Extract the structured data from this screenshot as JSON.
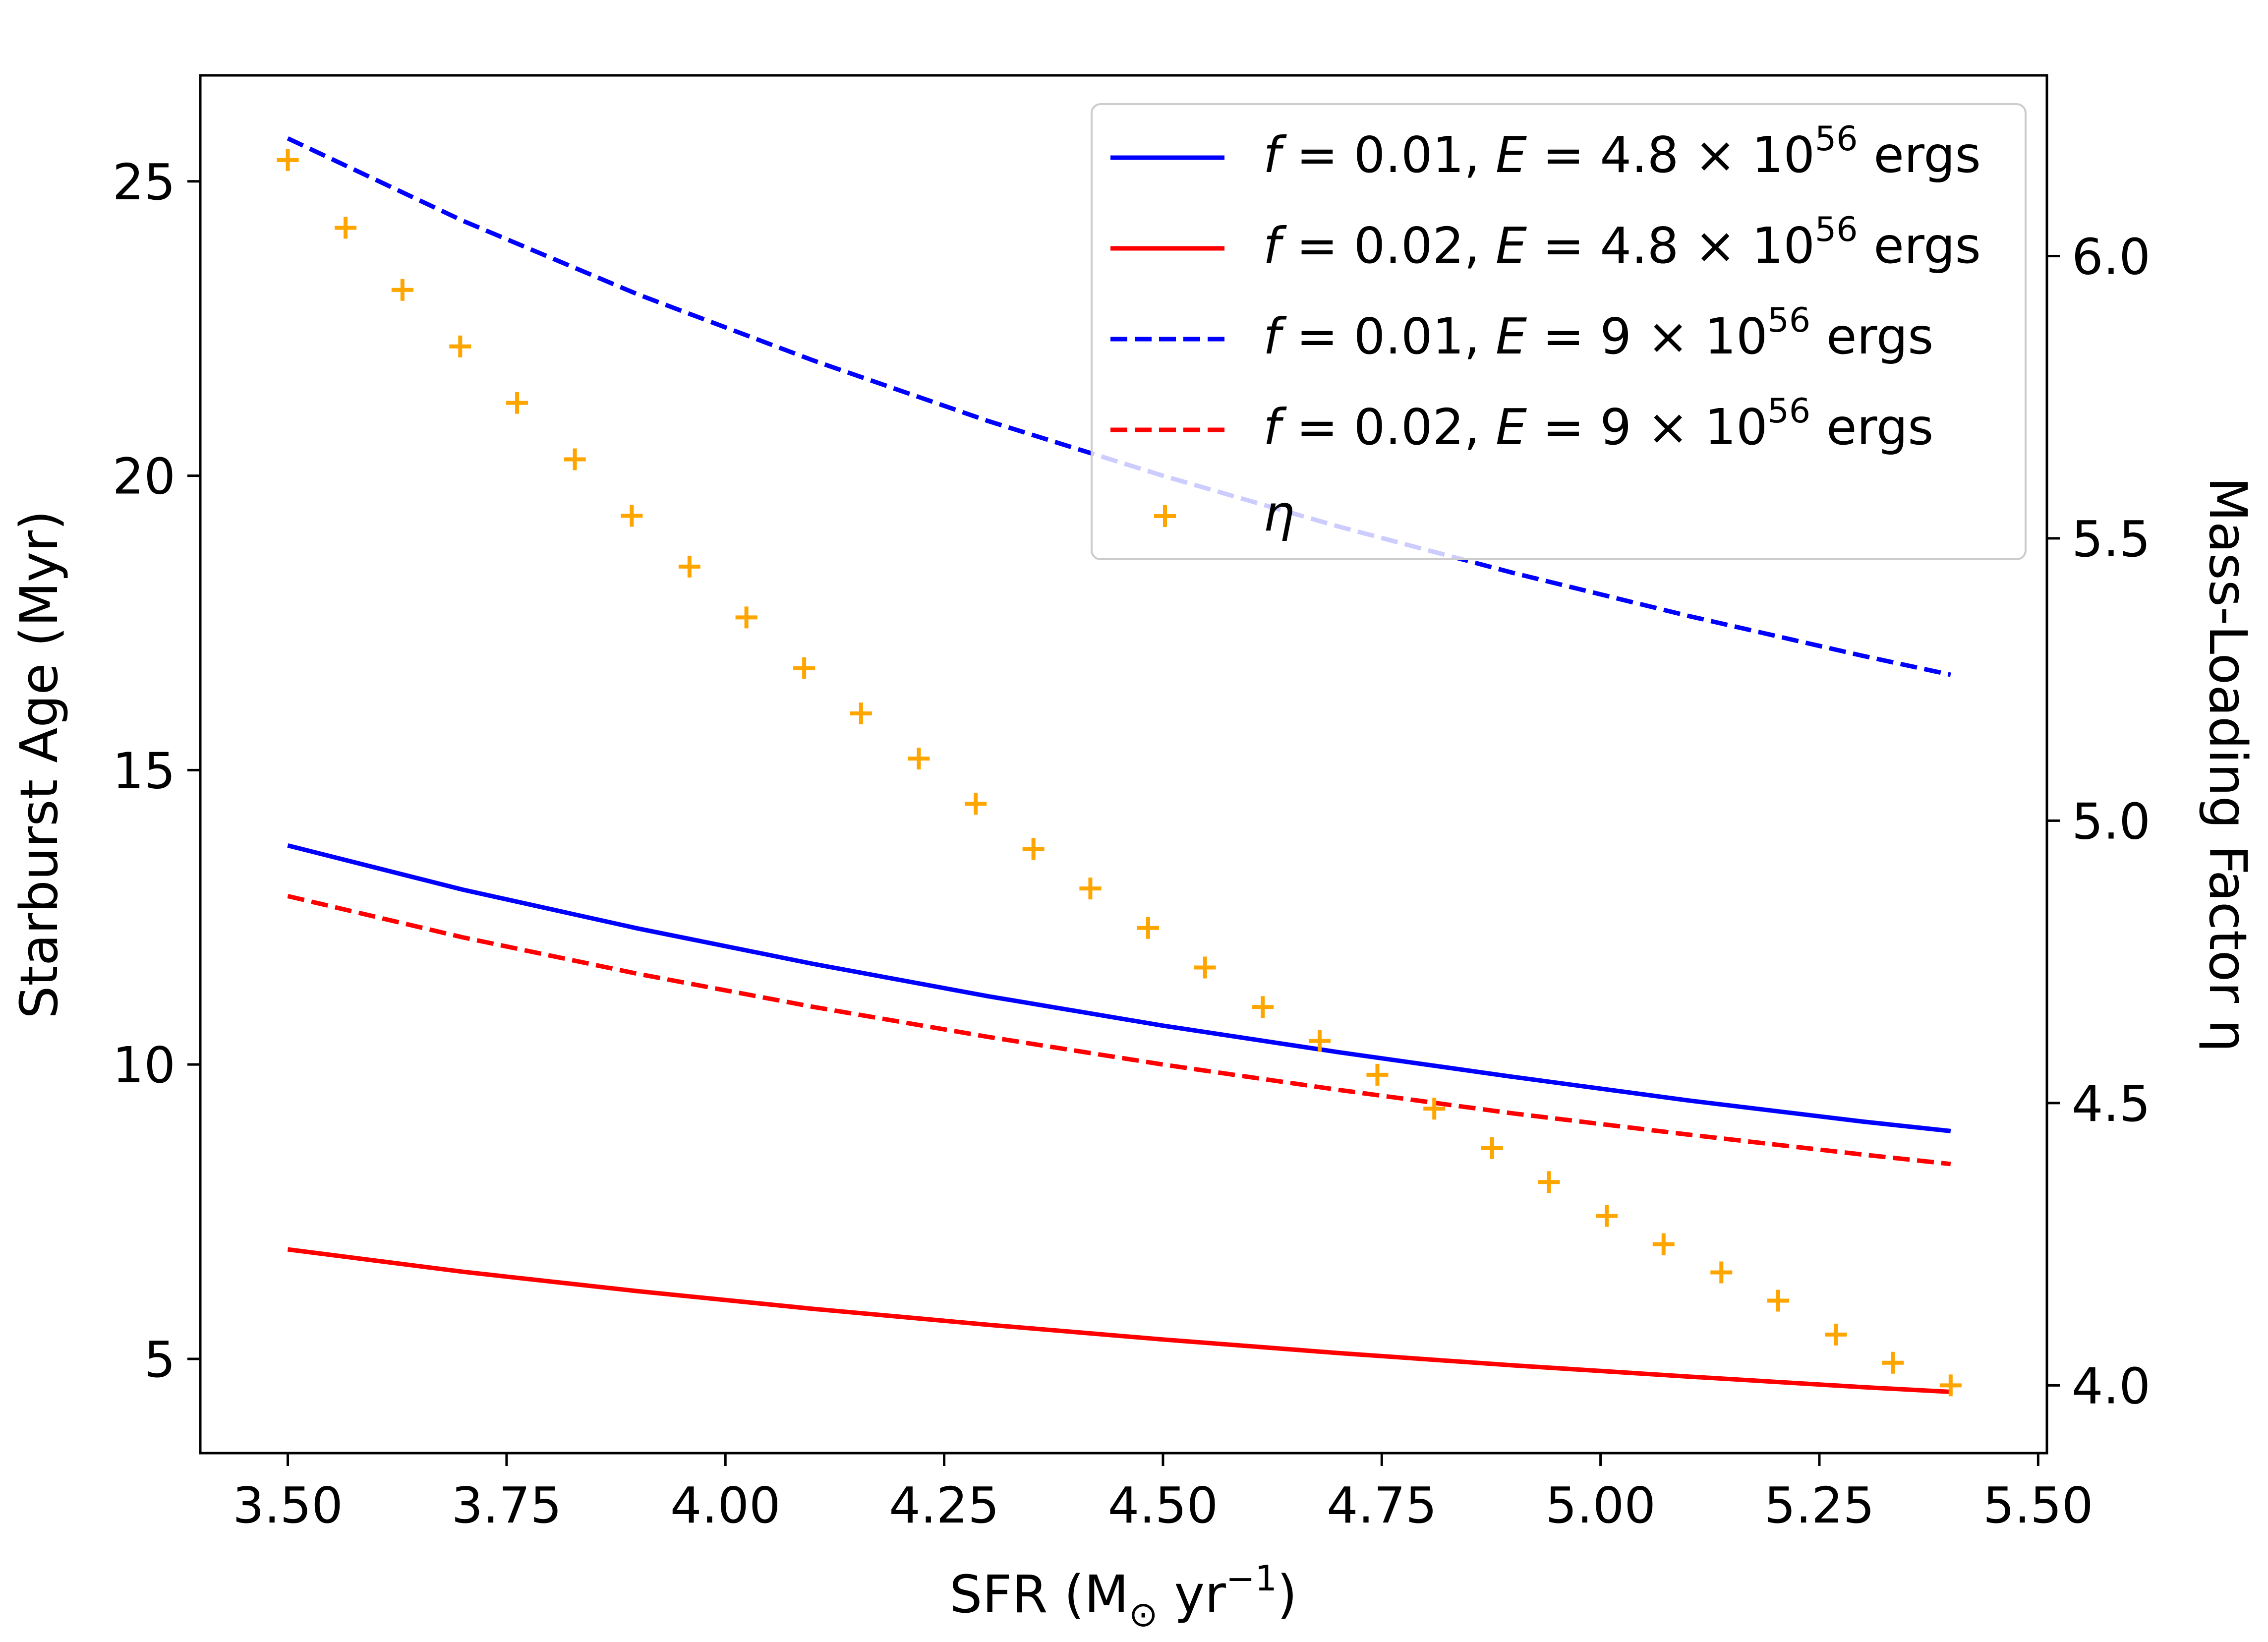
{
  "chart_data": {
    "type": "line",
    "xlabel": {
      "main": "SFR (M",
      "sub": "⊙",
      "mid": " yr",
      "sup": "−1",
      "end": ")"
    },
    "ylabel": "Starburst Age (Myr)",
    "y2label": "Mass-Loading Factor η",
    "xlim": [
      3.4,
      5.51
    ],
    "ylim": [
      3.4,
      26.8
    ],
    "y2lim": [
      3.88,
      6.32
    ],
    "xticks": [
      "3.50",
      "3.75",
      "4.00",
      "4.25",
      "4.50",
      "4.75",
      "5.00",
      "5.25",
      "5.50"
    ],
    "yticks": [
      "5",
      "10",
      "15",
      "20",
      "25"
    ],
    "y2ticks": [
      "4.0",
      "4.5",
      "5.0",
      "5.5",
      "6.0"
    ],
    "grid": false,
    "legend_position": "upper-right",
    "series": [
      {
        "name": "f = 0.01, E = 4.8 × 10^56 ergs",
        "legend": {
          "f": "0.01",
          "e": "4.8",
          "exp": "56",
          "unit": "ergs"
        },
        "style": "solid",
        "color": "#0000ff",
        "axis": "left",
        "x": [
          3.5,
          3.7,
          3.9,
          4.1,
          4.3,
          4.5,
          4.7,
          4.9,
          5.1,
          5.3,
          5.4
        ],
        "y": [
          13.72,
          12.97,
          12.31,
          11.71,
          11.16,
          10.66,
          10.21,
          9.79,
          9.39,
          9.03,
          8.87
        ]
      },
      {
        "name": "f = 0.02, E = 4.8 × 10^56 ergs",
        "legend": {
          "f": "0.02",
          "e": "4.8",
          "exp": "56",
          "unit": "ergs"
        },
        "style": "solid",
        "color": "#ff0000",
        "axis": "left",
        "x": [
          3.5,
          3.7,
          3.9,
          4.1,
          4.3,
          4.5,
          4.7,
          4.9,
          5.1,
          5.3,
          5.4
        ],
        "y": [
          6.86,
          6.48,
          6.15,
          5.85,
          5.58,
          5.33,
          5.1,
          4.89,
          4.7,
          4.52,
          4.44
        ]
      },
      {
        "name": "f = 0.01, E = 9 × 10^56 ergs",
        "legend": {
          "f": "0.01",
          "e": "9",
          "exp": "56",
          "unit": "ergs"
        },
        "style": "dashed",
        "color": "#0000ff",
        "axis": "left",
        "x": [
          3.5,
          3.7,
          3.9,
          4.1,
          4.3,
          4.5,
          4.7,
          4.9,
          5.1,
          5.3,
          5.4
        ],
        "y": [
          25.73,
          24.33,
          23.08,
          21.96,
          20.93,
          20.0,
          19.14,
          18.35,
          17.62,
          16.94,
          16.62
        ]
      },
      {
        "name": "f = 0.02, E = 9 × 10^56 ergs",
        "legend": {
          "f": "0.02",
          "e": "9",
          "exp": "56",
          "unit": "ergs"
        },
        "style": "dashed",
        "color": "#ff0000",
        "axis": "left",
        "x": [
          3.5,
          3.7,
          3.9,
          4.1,
          4.3,
          4.5,
          4.7,
          4.9,
          5.1,
          5.3,
          5.4
        ],
        "y": [
          12.86,
          12.16,
          11.54,
          10.98,
          10.47,
          10.0,
          9.57,
          9.17,
          8.81,
          8.47,
          8.31
        ]
      },
      {
        "name": "η",
        "legend": {
          "label": "η"
        },
        "style": "marker-plus",
        "color": "#ffa500",
        "axis": "right",
        "x": [
          3.5,
          3.566,
          3.631,
          3.697,
          3.762,
          3.828,
          3.893,
          3.959,
          4.024,
          4.09,
          4.155,
          4.221,
          4.286,
          4.352,
          4.417,
          4.483,
          4.548,
          4.614,
          4.679,
          4.745,
          4.81,
          4.876,
          4.941,
          5.007,
          5.072,
          5.138,
          5.203,
          5.269,
          5.334,
          5.4
        ],
        "y": [
          6.17,
          6.05,
          5.94,
          5.84,
          5.74,
          5.64,
          5.54,
          5.45,
          5.36,
          5.27,
          5.19,
          5.11,
          5.03,
          4.95,
          4.88,
          4.81,
          4.74,
          4.67,
          4.61,
          4.55,
          4.49,
          4.42,
          4.36,
          4.3,
          4.25,
          4.2,
          4.15,
          4.09,
          4.04,
          4.0
        ]
      }
    ]
  }
}
